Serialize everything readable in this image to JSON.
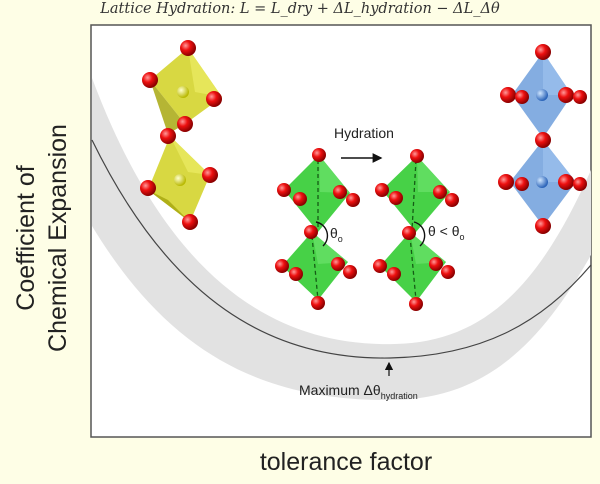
{
  "header": {
    "title": "Lattice Hydration: L = L_dry + ΔL_hydration − ΔL_Δθ"
  },
  "axes": {
    "y_label_line1": "Coefficient of",
    "y_label_line2": "Chemical Expansion",
    "x_label": "tolerance factor"
  },
  "annotations": {
    "hydration": "Hydration",
    "theta_initial": "θ",
    "theta_initial_sub": "o",
    "theta_compare": "θ < θ",
    "theta_compare_sub": "o",
    "maximum": "Maximum Δθ",
    "maximum_sub": "hydration"
  },
  "colors": {
    "background": "#fefee6",
    "plot_area": "#ffffff",
    "band": "#e2e2e2",
    "curve": "#444444",
    "oxygen": "#e00000",
    "octahedron_yellow": "#d8d838",
    "octahedron_green": "#33cc33",
    "octahedron_blue": "#6f9fdc"
  }
}
